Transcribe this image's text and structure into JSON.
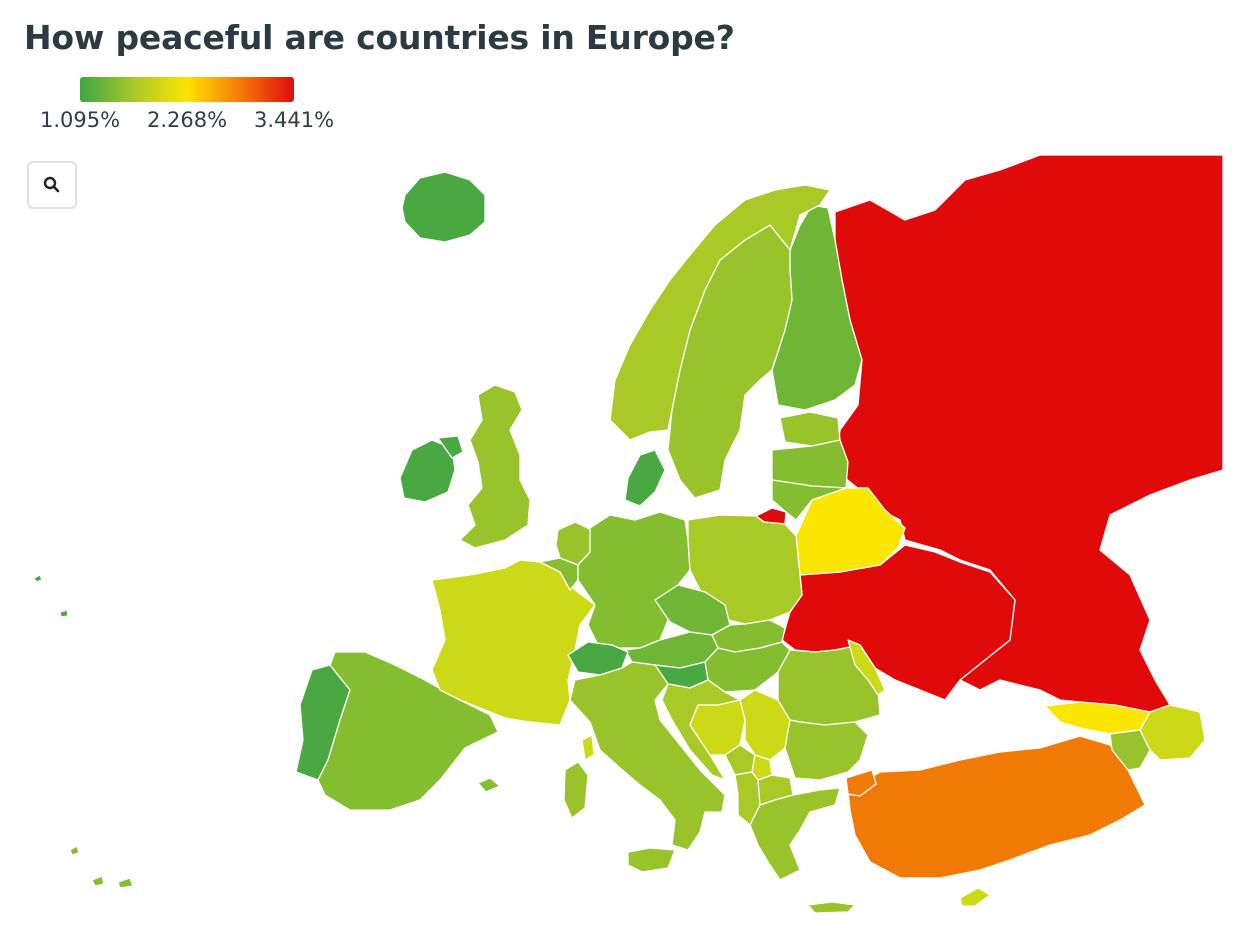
{
  "title": "How peaceful are countries in Europe?",
  "legend": {
    "min_label": "1.095%",
    "mid_label": "2.268%",
    "max_label": "3.441%",
    "min": 1.095,
    "mid": 2.268,
    "max": 3.441,
    "gradient": [
      "#3ea545",
      "#a8c92a",
      "#ffe300",
      "#f47a0a",
      "#e00c0c"
    ]
  },
  "zoom_button": {
    "icon": "search-icon"
  },
  "colors": {
    "red": "#e00a0a",
    "orange": "#f07a05",
    "yellow": "#fae600",
    "yellow_green": "#cbd916",
    "lime": "#a8c926",
    "light_green": "#98c32b",
    "mid_green": "#84bd2f",
    "green": "#6fb536",
    "dark_green": "#49a842"
  }
}
